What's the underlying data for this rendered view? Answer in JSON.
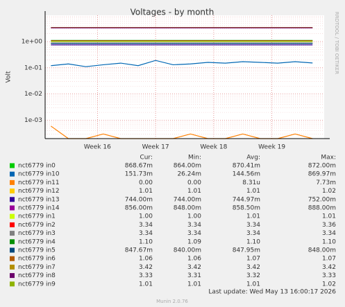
{
  "chart_data": {
    "type": "line",
    "title": "Voltages - by month",
    "y_label": "Volt",
    "log_y": true,
    "grid": true,
    "ylim": [
      0.0002,
      10
    ],
    "yticks": [
      {
        "value": 1,
        "label": "1e+00"
      },
      {
        "value": 0.1,
        "label": "1e-01"
      },
      {
        "value": 0.01,
        "label": "1e-02"
      },
      {
        "value": 0.001,
        "label": "1e-03"
      }
    ],
    "xlim": [
      15.1,
      19.9
    ],
    "xticks": [
      {
        "value": 16,
        "label": "Week 16"
      },
      {
        "value": 17,
        "label": "Week 17"
      },
      {
        "value": 18,
        "label": "Week 18"
      },
      {
        "value": 19,
        "label": "Week 19"
      }
    ],
    "x": [
      15.2,
      15.5,
      15.8,
      16.1,
      16.4,
      16.7,
      17.0,
      17.3,
      17.6,
      17.9,
      18.2,
      18.5,
      18.8,
      19.1,
      19.4,
      19.7
    ],
    "stat_headers": [
      "Cur:",
      "Min:",
      "Avg:",
      "Max:"
    ],
    "series": [
      {
        "name": "nct6779 in0",
        "color": "#00cc00",
        "values": [
          0.87,
          0.87,
          0.87,
          0.87,
          0.87,
          0.87,
          0.87,
          0.87,
          0.87,
          0.87,
          0.87,
          0.87,
          0.87,
          0.87,
          0.87,
          0.87
        ],
        "stats": [
          "868.67m",
          "864.00m",
          "870.41m",
          "872.00m"
        ]
      },
      {
        "name": "nct6779 in10",
        "color": "#0066b3",
        "values": [
          0.12,
          0.14,
          0.11,
          0.13,
          0.15,
          0.12,
          0.19,
          0.13,
          0.14,
          0.16,
          0.15,
          0.17,
          0.16,
          0.15,
          0.17,
          0.152
        ],
        "stats": [
          "151.73m",
          "26.24m",
          "144.56m",
          "869.97m"
        ]
      },
      {
        "name": "nct6779 in11",
        "color": "#ff8000",
        "values": [
          0.0006,
          0,
          0,
          0.0003,
          0,
          0,
          0,
          0,
          0.0003,
          0,
          0,
          0.0003,
          0,
          0,
          0.0003,
          0
        ],
        "stats": [
          "0.00",
          "0.00",
          "8.31u",
          "7.73m"
        ]
      },
      {
        "name": "nct6779 in12",
        "color": "#ffcc00",
        "values": [
          1.01,
          1.01,
          1.01,
          1.01,
          1.01,
          1.01,
          1.01,
          1.01,
          1.01,
          1.01,
          1.01,
          1.01,
          1.01,
          1.01,
          1.01,
          1.01
        ],
        "stats": [
          "1.01",
          "1.01",
          "1.01",
          "1.02"
        ]
      },
      {
        "name": "nct6779 in13",
        "color": "#330099",
        "values": [
          0.745,
          0.745,
          0.745,
          0.745,
          0.745,
          0.745,
          0.745,
          0.745,
          0.745,
          0.745,
          0.745,
          0.745,
          0.745,
          0.745,
          0.745,
          0.745
        ],
        "stats": [
          "744.00m",
          "744.00m",
          "744.97m",
          "752.00m"
        ]
      },
      {
        "name": "nct6779 in14",
        "color": "#990099",
        "values": [
          0.8585,
          0.8585,
          0.8585,
          0.8585,
          0.8585,
          0.8585,
          0.8585,
          0.8585,
          0.8585,
          0.8585,
          0.8585,
          0.8585,
          0.8585,
          0.8585,
          0.8585,
          0.8585
        ],
        "stats": [
          "856.00m",
          "848.00m",
          "858.50m",
          "888.00m"
        ]
      },
      {
        "name": "nct6779 in1",
        "color": "#ccff00",
        "values": [
          1.01,
          1.01,
          1.01,
          1.01,
          1.01,
          1.01,
          1.01,
          1.01,
          1.01,
          1.01,
          1.01,
          1.01,
          1.01,
          1.01,
          1.01,
          1.01
        ],
        "stats": [
          "1.00",
          "1.00",
          "1.01",
          "1.01"
        ]
      },
      {
        "name": "nct6779 in2",
        "color": "#ff0000",
        "values": [
          3.34,
          3.34,
          3.34,
          3.34,
          3.34,
          3.34,
          3.34,
          3.34,
          3.34,
          3.34,
          3.34,
          3.34,
          3.34,
          3.34,
          3.34,
          3.34
        ],
        "stats": [
          "3.34",
          "3.34",
          "3.34",
          "3.36"
        ]
      },
      {
        "name": "nct6779 in3",
        "color": "#808080",
        "values": [
          3.34,
          3.34,
          3.34,
          3.34,
          3.34,
          3.34,
          3.34,
          3.34,
          3.34,
          3.34,
          3.34,
          3.34,
          3.34,
          3.34,
          3.34,
          3.34
        ],
        "stats": [
          "3.34",
          "3.34",
          "3.34",
          "3.34"
        ]
      },
      {
        "name": "nct6779 in4",
        "color": "#008f00",
        "values": [
          1.1,
          1.1,
          1.1,
          1.1,
          1.1,
          1.1,
          1.1,
          1.1,
          1.1,
          1.1,
          1.1,
          1.1,
          1.1,
          1.1,
          1.1,
          1.1
        ],
        "stats": [
          "1.10",
          "1.09",
          "1.10",
          "1.10"
        ]
      },
      {
        "name": "nct6779 in5",
        "color": "#00487d",
        "values": [
          0.848,
          0.848,
          0.848,
          0.848,
          0.848,
          0.848,
          0.848,
          0.848,
          0.848,
          0.848,
          0.848,
          0.848,
          0.848,
          0.848,
          0.848,
          0.848
        ],
        "stats": [
          "847.67m",
          "840.00m",
          "847.95m",
          "848.00m"
        ]
      },
      {
        "name": "nct6779 in6",
        "color": "#b35a00",
        "values": [
          1.07,
          1.07,
          1.07,
          1.07,
          1.07,
          1.07,
          1.07,
          1.07,
          1.07,
          1.07,
          1.07,
          1.07,
          1.07,
          1.07,
          1.07,
          1.07
        ],
        "stats": [
          "1.06",
          "1.06",
          "1.07",
          "1.07"
        ]
      },
      {
        "name": "nct6779 in7",
        "color": "#b38f00",
        "values": [
          3.42,
          3.42,
          3.42,
          3.42,
          3.42,
          3.42,
          3.42,
          3.42,
          3.42,
          3.42,
          3.42,
          3.42,
          3.42,
          3.42,
          3.42,
          3.42
        ],
        "stats": [
          "3.42",
          "3.42",
          "3.42",
          "3.42"
        ]
      },
      {
        "name": "nct6779 in8",
        "color": "#6b006b",
        "values": [
          3.32,
          3.32,
          3.32,
          3.32,
          3.32,
          3.32,
          3.32,
          3.32,
          3.32,
          3.32,
          3.32,
          3.32,
          3.32,
          3.32,
          3.32,
          3.32
        ],
        "stats": [
          "3.33",
          "3.31",
          "3.32",
          "3.33"
        ]
      },
      {
        "name": "nct6779 in9",
        "color": "#8fb300",
        "values": [
          1.01,
          1.01,
          1.01,
          1.01,
          1.01,
          1.01,
          1.01,
          1.01,
          1.01,
          1.01,
          1.01,
          1.01,
          1.01,
          1.01,
          1.01,
          1.01
        ],
        "stats": [
          "1.01",
          "1.01",
          "1.01",
          "1.02"
        ]
      }
    ],
    "last_update": "Last update: Wed May 13 16:00:17 2026",
    "credit": "RRDTOOL / TOBI OETIKER",
    "version": "Munin 2.0.76"
  }
}
